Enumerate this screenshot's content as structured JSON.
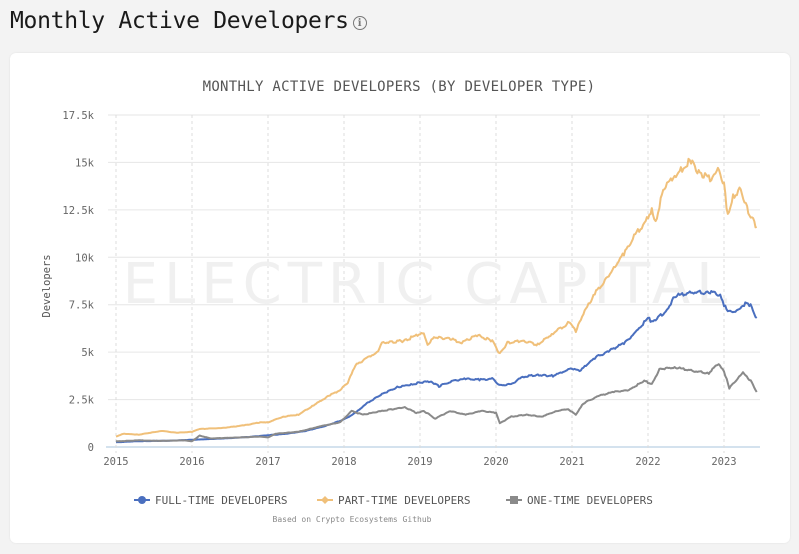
{
  "page": {
    "title": "Monthly Active Developers",
    "info_icon": "info-icon"
  },
  "chart_data": {
    "type": "line",
    "title": "MONTHLY ACTIVE DEVELOPERS (BY DEVELOPER TYPE)",
    "xlabel": "",
    "ylabel": "Developers",
    "watermark": "ELECTRIC CAPITAL",
    "source_note": "Based on Crypto Ecosystems Github",
    "xlim": [
      2015,
      2023.45
    ],
    "ylim": [
      0,
      17500
    ],
    "x_ticks": [
      "2015",
      "2016",
      "2017",
      "2018",
      "2019",
      "2020",
      "2021",
      "2022",
      "2023"
    ],
    "y_ticks": [
      "0",
      "2.5k",
      "5k",
      "7.5k",
      "10k",
      "12.5k",
      "15k",
      "17.5k"
    ],
    "y_tick_values": [
      0,
      2500,
      5000,
      7500,
      10000,
      12500,
      15000,
      17500
    ],
    "grid": true,
    "legend_position": "bottom",
    "series": [
      {
        "name": "FULL-TIME DEVELOPERS",
        "color": "#4a6fbf",
        "marker": "circle",
        "points": [
          [
            2015.0,
            250
          ],
          [
            2015.25,
            300
          ],
          [
            2015.5,
            320
          ],
          [
            2015.75,
            340
          ],
          [
            2016.0,
            380
          ],
          [
            2016.25,
            420
          ],
          [
            2016.5,
            470
          ],
          [
            2016.75,
            530
          ],
          [
            2017.0,
            620
          ],
          [
            2017.25,
            700
          ],
          [
            2017.5,
            850
          ],
          [
            2017.75,
            1100
          ],
          [
            2018.0,
            1450
          ],
          [
            2018.15,
            1800
          ],
          [
            2018.3,
            2300
          ],
          [
            2018.5,
            2800
          ],
          [
            2018.7,
            3150
          ],
          [
            2018.9,
            3300
          ],
          [
            2019.0,
            3400
          ],
          [
            2019.15,
            3450
          ],
          [
            2019.25,
            3200
          ],
          [
            2019.4,
            3450
          ],
          [
            2019.6,
            3600
          ],
          [
            2019.8,
            3550
          ],
          [
            2019.95,
            3600
          ],
          [
            2020.05,
            3250
          ],
          [
            2020.2,
            3300
          ],
          [
            2020.35,
            3700
          ],
          [
            2020.55,
            3800
          ],
          [
            2020.75,
            3750
          ],
          [
            2020.9,
            4000
          ],
          [
            2021.0,
            4150
          ],
          [
            2021.1,
            4000
          ],
          [
            2021.3,
            4700
          ],
          [
            2021.5,
            5100
          ],
          [
            2021.7,
            5500
          ],
          [
            2021.85,
            6100
          ],
          [
            2022.0,
            6800
          ],
          [
            2022.05,
            6600
          ],
          [
            2022.25,
            7200
          ],
          [
            2022.35,
            7950
          ],
          [
            2022.6,
            8150
          ],
          [
            2022.8,
            8150
          ],
          [
            2022.95,
            8050
          ],
          [
            2023.0,
            7500
          ],
          [
            2023.05,
            7100
          ],
          [
            2023.2,
            7200
          ],
          [
            2023.28,
            7600
          ],
          [
            2023.35,
            7450
          ],
          [
            2023.43,
            6800
          ]
        ]
      },
      {
        "name": "PART-TIME DEVELOPERS",
        "color": "#f0c07a",
        "marker": "diamond",
        "points": [
          [
            2015.0,
            550
          ],
          [
            2015.1,
            700
          ],
          [
            2015.3,
            650
          ],
          [
            2015.6,
            850
          ],
          [
            2015.8,
            750
          ],
          [
            2016.0,
            800
          ],
          [
            2016.1,
            950
          ],
          [
            2016.4,
            1000
          ],
          [
            2016.7,
            1150
          ],
          [
            2016.9,
            1300
          ],
          [
            2017.0,
            1300
          ],
          [
            2017.2,
            1600
          ],
          [
            2017.4,
            1700
          ],
          [
            2017.6,
            2200
          ],
          [
            2017.8,
            2700
          ],
          [
            2017.95,
            3000
          ],
          [
            2018.05,
            3400
          ],
          [
            2018.15,
            4300
          ],
          [
            2018.3,
            4700
          ],
          [
            2018.45,
            5000
          ],
          [
            2018.5,
            5500
          ],
          [
            2018.8,
            5600
          ],
          [
            2018.95,
            5900
          ],
          [
            2019.05,
            6000
          ],
          [
            2019.1,
            5400
          ],
          [
            2019.2,
            5800
          ],
          [
            2019.4,
            5700
          ],
          [
            2019.55,
            5500
          ],
          [
            2019.75,
            5900
          ],
          [
            2019.95,
            5600
          ],
          [
            2020.05,
            4900
          ],
          [
            2020.15,
            5500
          ],
          [
            2020.35,
            5600
          ],
          [
            2020.55,
            5400
          ],
          [
            2020.75,
            6000
          ],
          [
            2020.9,
            6400
          ],
          [
            2020.98,
            6600
          ],
          [
            2021.05,
            6100
          ],
          [
            2021.15,
            7000
          ],
          [
            2021.3,
            8100
          ],
          [
            2021.5,
            9100
          ],
          [
            2021.7,
            10300
          ],
          [
            2021.85,
            11300
          ],
          [
            2021.97,
            11900
          ],
          [
            2022.05,
            12500
          ],
          [
            2022.1,
            11800
          ],
          [
            2022.2,
            13600
          ],
          [
            2022.35,
            14300
          ],
          [
            2022.5,
            14800
          ],
          [
            2022.55,
            15200
          ],
          [
            2022.65,
            14500
          ],
          [
            2022.75,
            14300
          ],
          [
            2022.85,
            14100
          ],
          [
            2022.92,
            14700
          ],
          [
            2023.0,
            13800
          ],
          [
            2023.05,
            12200
          ],
          [
            2023.12,
            13200
          ],
          [
            2023.22,
            13600
          ],
          [
            2023.32,
            12400
          ],
          [
            2023.43,
            11600
          ]
        ]
      },
      {
        "name": "ONE-TIME DEVELOPERS",
        "color": "#8a8a8a",
        "marker": "square",
        "points": [
          [
            2015.0,
            300
          ],
          [
            2015.3,
            350
          ],
          [
            2015.6,
            320
          ],
          [
            2015.9,
            350
          ],
          [
            2016.0,
            300
          ],
          [
            2016.1,
            600
          ],
          [
            2016.25,
            450
          ],
          [
            2016.6,
            500
          ],
          [
            2016.9,
            550
          ],
          [
            2017.0,
            500
          ],
          [
            2017.1,
            700
          ],
          [
            2017.4,
            800
          ],
          [
            2017.7,
            1100
          ],
          [
            2017.95,
            1300
          ],
          [
            2018.1,
            1900
          ],
          [
            2018.25,
            1700
          ],
          [
            2018.5,
            1900
          ],
          [
            2018.8,
            2100
          ],
          [
            2018.95,
            1800
          ],
          [
            2019.05,
            1900
          ],
          [
            2019.2,
            1500
          ],
          [
            2019.4,
            1900
          ],
          [
            2019.6,
            1700
          ],
          [
            2019.8,
            1900
          ],
          [
            2020.0,
            1800
          ],
          [
            2020.05,
            1250
          ],
          [
            2020.2,
            1600
          ],
          [
            2020.4,
            1700
          ],
          [
            2020.6,
            1600
          ],
          [
            2020.8,
            1900
          ],
          [
            2020.95,
            2000
          ],
          [
            2021.05,
            1700
          ],
          [
            2021.15,
            2300
          ],
          [
            2021.35,
            2700
          ],
          [
            2021.55,
            2900
          ],
          [
            2021.75,
            3000
          ],
          [
            2021.95,
            3500
          ],
          [
            2022.05,
            3300
          ],
          [
            2022.15,
            4100
          ],
          [
            2022.35,
            4200
          ],
          [
            2022.6,
            4000
          ],
          [
            2022.8,
            3900
          ],
          [
            2022.93,
            4400
          ],
          [
            2023.0,
            4000
          ],
          [
            2023.07,
            3100
          ],
          [
            2023.18,
            3600
          ],
          [
            2023.25,
            3900
          ],
          [
            2023.35,
            3500
          ],
          [
            2023.43,
            2900
          ]
        ]
      }
    ]
  }
}
